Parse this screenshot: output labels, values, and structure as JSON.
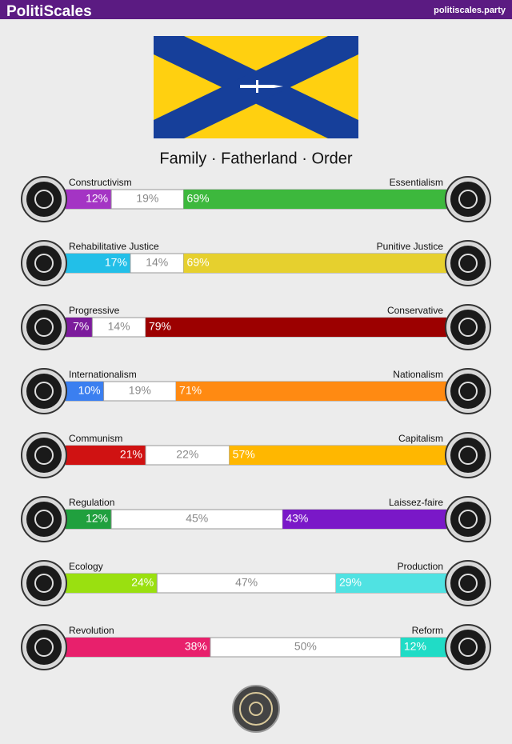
{
  "header": {
    "title": "PolitiScales",
    "url": "politiscales.party"
  },
  "motto": "Family · Fatherland · Order",
  "axes": [
    {
      "left_name": "Constructivism",
      "right_name": "Essentialism",
      "left": {
        "value": 12,
        "label": "12%"
      },
      "neutral": {
        "value": 19,
        "label": "19%"
      },
      "right": {
        "value": 69,
        "label": "69%"
      },
      "left_color": "#a434c4",
      "right_color": "#3db83d"
    },
    {
      "left_name": "Rehabilitative Justice",
      "right_name": "Punitive Justice",
      "left": {
        "value": 17,
        "label": "17%"
      },
      "neutral": {
        "value": 14,
        "label": "14%"
      },
      "right": {
        "value": 69,
        "label": "69%"
      },
      "left_color": "#22bfe8",
      "right_color": "#e6d02e"
    },
    {
      "left_name": "Progressive",
      "right_name": "Conservative",
      "left": {
        "value": 7,
        "label": "7%"
      },
      "neutral": {
        "value": 14,
        "label": "14%"
      },
      "right": {
        "value": 79,
        "label": "79%"
      },
      "left_color": "#7c1b9c",
      "right_color": "#9c0000"
    },
    {
      "left_name": "Internationalism",
      "right_name": "Nationalism",
      "left": {
        "value": 10,
        "label": "10%"
      },
      "neutral": {
        "value": 19,
        "label": "19%"
      },
      "right": {
        "value": 71,
        "label": "71%"
      },
      "left_color": "#3b7ff0",
      "right_color": "#ff8a12"
    },
    {
      "left_name": "Communism",
      "right_name": "Capitalism",
      "left": {
        "value": 21,
        "label": "21%"
      },
      "neutral": {
        "value": 22,
        "label": "22%"
      },
      "right": {
        "value": 57,
        "label": "57%"
      },
      "left_color": "#d01212",
      "right_color": "#ffb700"
    },
    {
      "left_name": "Regulation",
      "right_name": "Laissez-faire",
      "left": {
        "value": 12,
        "label": "12%"
      },
      "neutral": {
        "value": 45,
        "label": "45%"
      },
      "right": {
        "value": 43,
        "label": "43%"
      },
      "left_color": "#20a03e",
      "right_color": "#7a18c8"
    },
    {
      "left_name": "Ecology",
      "right_name": "Production",
      "left": {
        "value": 24,
        "label": "24%"
      },
      "neutral": {
        "value": 47,
        "label": "47%"
      },
      "right": {
        "value": 29,
        "label": "29%"
      },
      "left_color": "#9ae010",
      "right_color": "#50e2e2"
    },
    {
      "left_name": "Revolution",
      "right_name": "Reform",
      "left": {
        "value": 38,
        "label": "38%"
      },
      "neutral": {
        "value": 50,
        "label": "50%"
      },
      "right": {
        "value": 12,
        "label": "12%"
      },
      "left_color": "#e8206c",
      "right_color": "#20dcc6"
    }
  ]
}
